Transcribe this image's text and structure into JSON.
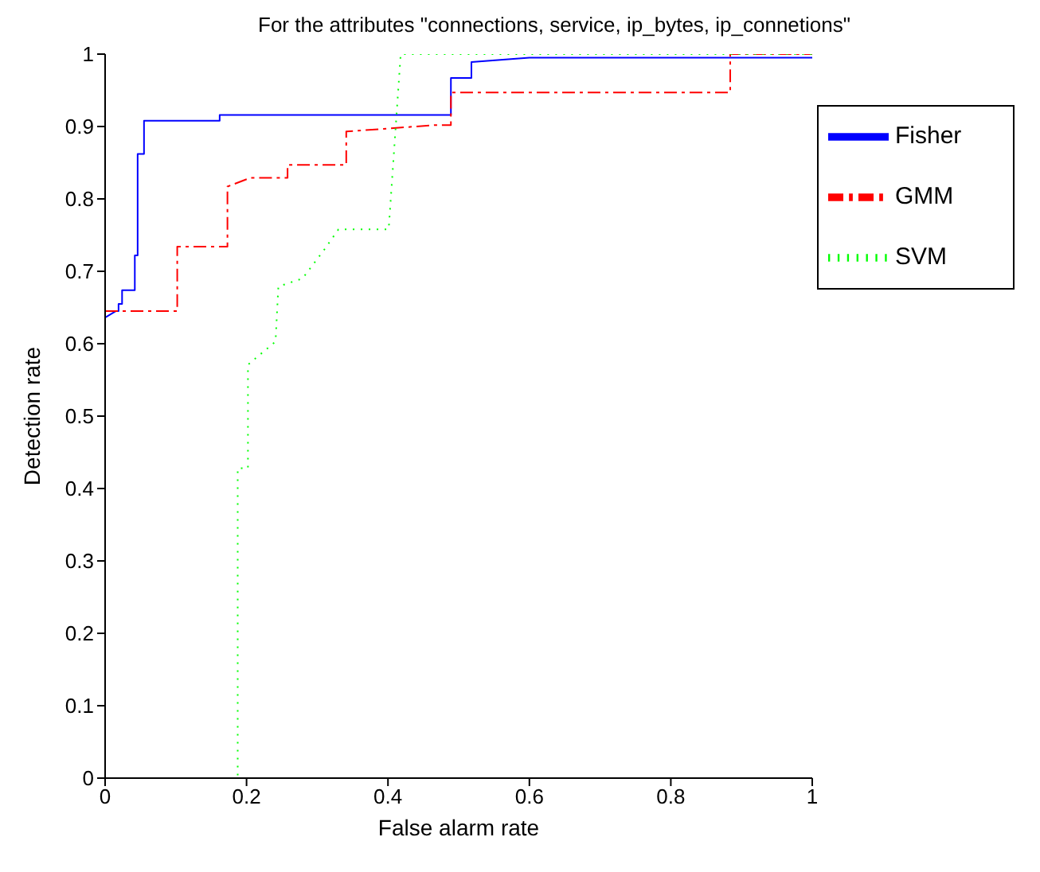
{
  "chart_data": {
    "type": "line",
    "title": "For the attributes \"connections, service, ip_bytes, ip_connetions\"",
    "xlabel": "False alarm rate",
    "ylabel": "Detection rate",
    "xlim": [
      0,
      1
    ],
    "ylim": [
      0,
      1
    ],
    "xticks": [
      0,
      0.2,
      0.4,
      0.6,
      0.8,
      1
    ],
    "yticks": [
      0,
      0.1,
      0.2,
      0.3,
      0.4,
      0.5,
      0.6,
      0.7,
      0.8,
      0.9,
      1
    ],
    "legend": "top right",
    "marker": "none",
    "series": [
      {
        "name": "Fisher",
        "color": "#0000ff",
        "line_style": "solid",
        "x": [
          0,
          0.015,
          0.019,
          0.019,
          0.024,
          0.024,
          0.042,
          0.042,
          0.046,
          0.046,
          0.055,
          0.055,
          0.162,
          0.162,
          0.489,
          0.489,
          0.518,
          0.518,
          0.6,
          1
        ],
        "values": [
          0.636,
          0.645,
          0.645,
          0.655,
          0.655,
          0.674,
          0.674,
          0.722,
          0.722,
          0.862,
          0.862,
          0.908,
          0.908,
          0.916,
          0.916,
          0.967,
          0.967,
          0.989,
          0.995,
          0.995
        ]
      },
      {
        "name": "GMM",
        "color": "#ff0000",
        "line_style": "dashed",
        "x": [
          0,
          0.102,
          0.102,
          0.173,
          0.173,
          0.205,
          0.258,
          0.258,
          0.341,
          0.341,
          0.467,
          0.489,
          0.489,
          0.884,
          0.884,
          1
        ],
        "values": [
          0.645,
          0.645,
          0.734,
          0.734,
          0.817,
          0.829,
          0.829,
          0.847,
          0.847,
          0.893,
          0.902,
          0.902,
          0.947,
          0.947,
          1,
          1
        ]
      },
      {
        "name": "SVM",
        "color": "#00ff00",
        "line_style": "dotted",
        "x": [
          0,
          0.1875,
          0.1875,
          0.202,
          0.202,
          0.241,
          0.245,
          0.279,
          0.31,
          0.33,
          0.401,
          0.418,
          1
        ],
        "values": [
          0,
          0,
          0.428,
          0.428,
          0.571,
          0.603,
          0.679,
          0.69,
          0.73,
          0.758,
          0.758,
          1,
          1
        ]
      }
    ]
  }
}
